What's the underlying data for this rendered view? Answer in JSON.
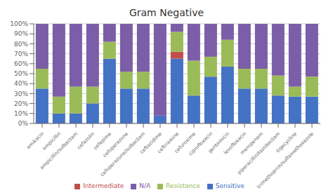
{
  "chart_data": {
    "type": "bar",
    "title": "Gram Negative",
    "categories": [
      "amikacin",
      "ampicillin",
      "ampicillin/sulbactam",
      "cefazolin",
      "cefepime",
      "cefoperazone",
      "cefoperazone/sulbactam",
      "ceftazidime",
      "ceftriaxone",
      "cefuroxime",
      "ciprofloxacin",
      "gentamicin",
      "levofloxacin",
      "meropenem",
      "piperacillin/tazobactam",
      "tigecycline",
      "trimethoprim/sulfamethoxazole"
    ],
    "series": [
      {
        "name": "Sensitive",
        "color": "#4472C4",
        "values": [
          35,
          10,
          10,
          20,
          65,
          35,
          35,
          8,
          65,
          28,
          47,
          57,
          35,
          35,
          28,
          27,
          27
        ]
      },
      {
        "name": "Intermediate",
        "color": "#C0504D",
        "values": [
          0,
          0,
          0,
          0,
          0,
          0,
          0,
          0,
          7,
          0,
          0,
          0,
          0,
          0,
          0,
          0,
          0
        ]
      },
      {
        "name": "Resistance",
        "color": "#9BBB59",
        "values": [
          20,
          17,
          27,
          17,
          17,
          17,
          17,
          0,
          20,
          35,
          20,
          27,
          20,
          20,
          20,
          10,
          20
        ]
      },
      {
        "name": "N/A",
        "color": "#7B5EA7",
        "values": [
          45,
          73,
          63,
          63,
          18,
          48,
          48,
          92,
          8,
          37,
          33,
          16,
          45,
          45,
          52,
          63,
          53
        ]
      }
    ],
    "stacked": true,
    "ylim": [
      0,
      100
    ],
    "yticks": [
      {
        "value": 0,
        "label": "0%"
      },
      {
        "value": 10,
        "label": "10%"
      },
      {
        "value": 20,
        "label": "20%"
      },
      {
        "value": 30,
        "label": "30%"
      },
      {
        "value": 40,
        "label": "40%"
      },
      {
        "value": 50,
        "label": "50%"
      },
      {
        "value": 60,
        "label": "60%"
      },
      {
        "value": 70,
        "label": "70%"
      },
      {
        "value": 80,
        "label": "80%"
      },
      {
        "value": 90,
        "label": "90%"
      },
      {
        "value": 100,
        "label": "100%"
      }
    ],
    "grid": true,
    "legend": "bottom"
  }
}
